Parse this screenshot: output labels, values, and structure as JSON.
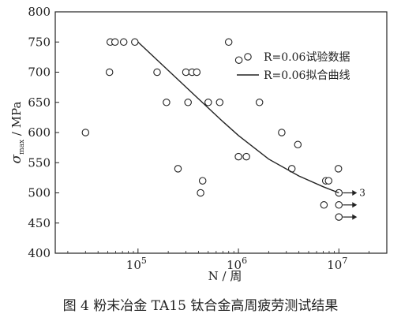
{
  "caption": "图 4  粉末冶金 TA15 钛合金高周疲劳测试结果",
  "chart_data": {
    "type": "scatter",
    "title": "",
    "xlabel": "N / 周",
    "ylabel_symbol": "σ",
    "ylabel_sub": "max",
    "ylabel_unit": " / MPa",
    "xscale": "log",
    "xlim": [
      15000,
      30000000
    ],
    "ylim": [
      400,
      800
    ],
    "x_ticks": [
      {
        "value": 100000,
        "base": "10",
        "exp": "5"
      },
      {
        "value": 1000000,
        "base": "10",
        "exp": "6"
      },
      {
        "value": 10000000,
        "base": "10",
        "exp": "7"
      }
    ],
    "y_ticks": [
      400,
      450,
      500,
      550,
      600,
      650,
      700,
      750,
      800
    ],
    "grid": false,
    "legend_position": "top-right",
    "series": [
      {
        "name": "R=0.06试验数据",
        "kind": "scatter",
        "points": [
          [
            30000,
            600
          ],
          [
            52000,
            700
          ],
          [
            53000,
            750
          ],
          [
            59000,
            750
          ],
          [
            72000,
            750
          ],
          [
            93000,
            750
          ],
          [
            155000,
            700
          ],
          [
            192000,
            650
          ],
          [
            250000,
            540
          ],
          [
            300000,
            700
          ],
          [
            315000,
            650
          ],
          [
            345000,
            700
          ],
          [
            385000,
            700
          ],
          [
            420000,
            500
          ],
          [
            440000,
            520
          ],
          [
            500000,
            650
          ],
          [
            650000,
            650
          ],
          [
            800000,
            750
          ],
          [
            1000000,
            560
          ],
          [
            1010000,
            720
          ],
          [
            1200000,
            560
          ],
          [
            1620000,
            650
          ],
          [
            2700000,
            600
          ],
          [
            3400000,
            540
          ],
          [
            3900000,
            580
          ],
          [
            7100000,
            480
          ],
          [
            7400000,
            520
          ],
          [
            7900000,
            520
          ],
          [
            9900000,
            540
          ],
          [
            10000000,
            500
          ],
          [
            10000000,
            480
          ],
          [
            10000000,
            460
          ]
        ]
      },
      {
        "name": "R=0.06拟合曲线",
        "kind": "line",
        "points": [
          [
            100000,
            750
          ],
          [
            200000,
            703
          ],
          [
            400000,
            656
          ],
          [
            700000,
            618
          ],
          [
            1000000,
            595
          ],
          [
            2000000,
            556
          ],
          [
            4000000,
            528
          ],
          [
            7000000,
            510
          ],
          [
            10000000,
            500
          ]
        ]
      }
    ],
    "runouts": [
      {
        "x": 10000000,
        "y": 500,
        "label": "3"
      },
      {
        "x": 10000000,
        "y": 480,
        "label": ""
      },
      {
        "x": 10000000,
        "y": 460,
        "label": ""
      }
    ]
  }
}
